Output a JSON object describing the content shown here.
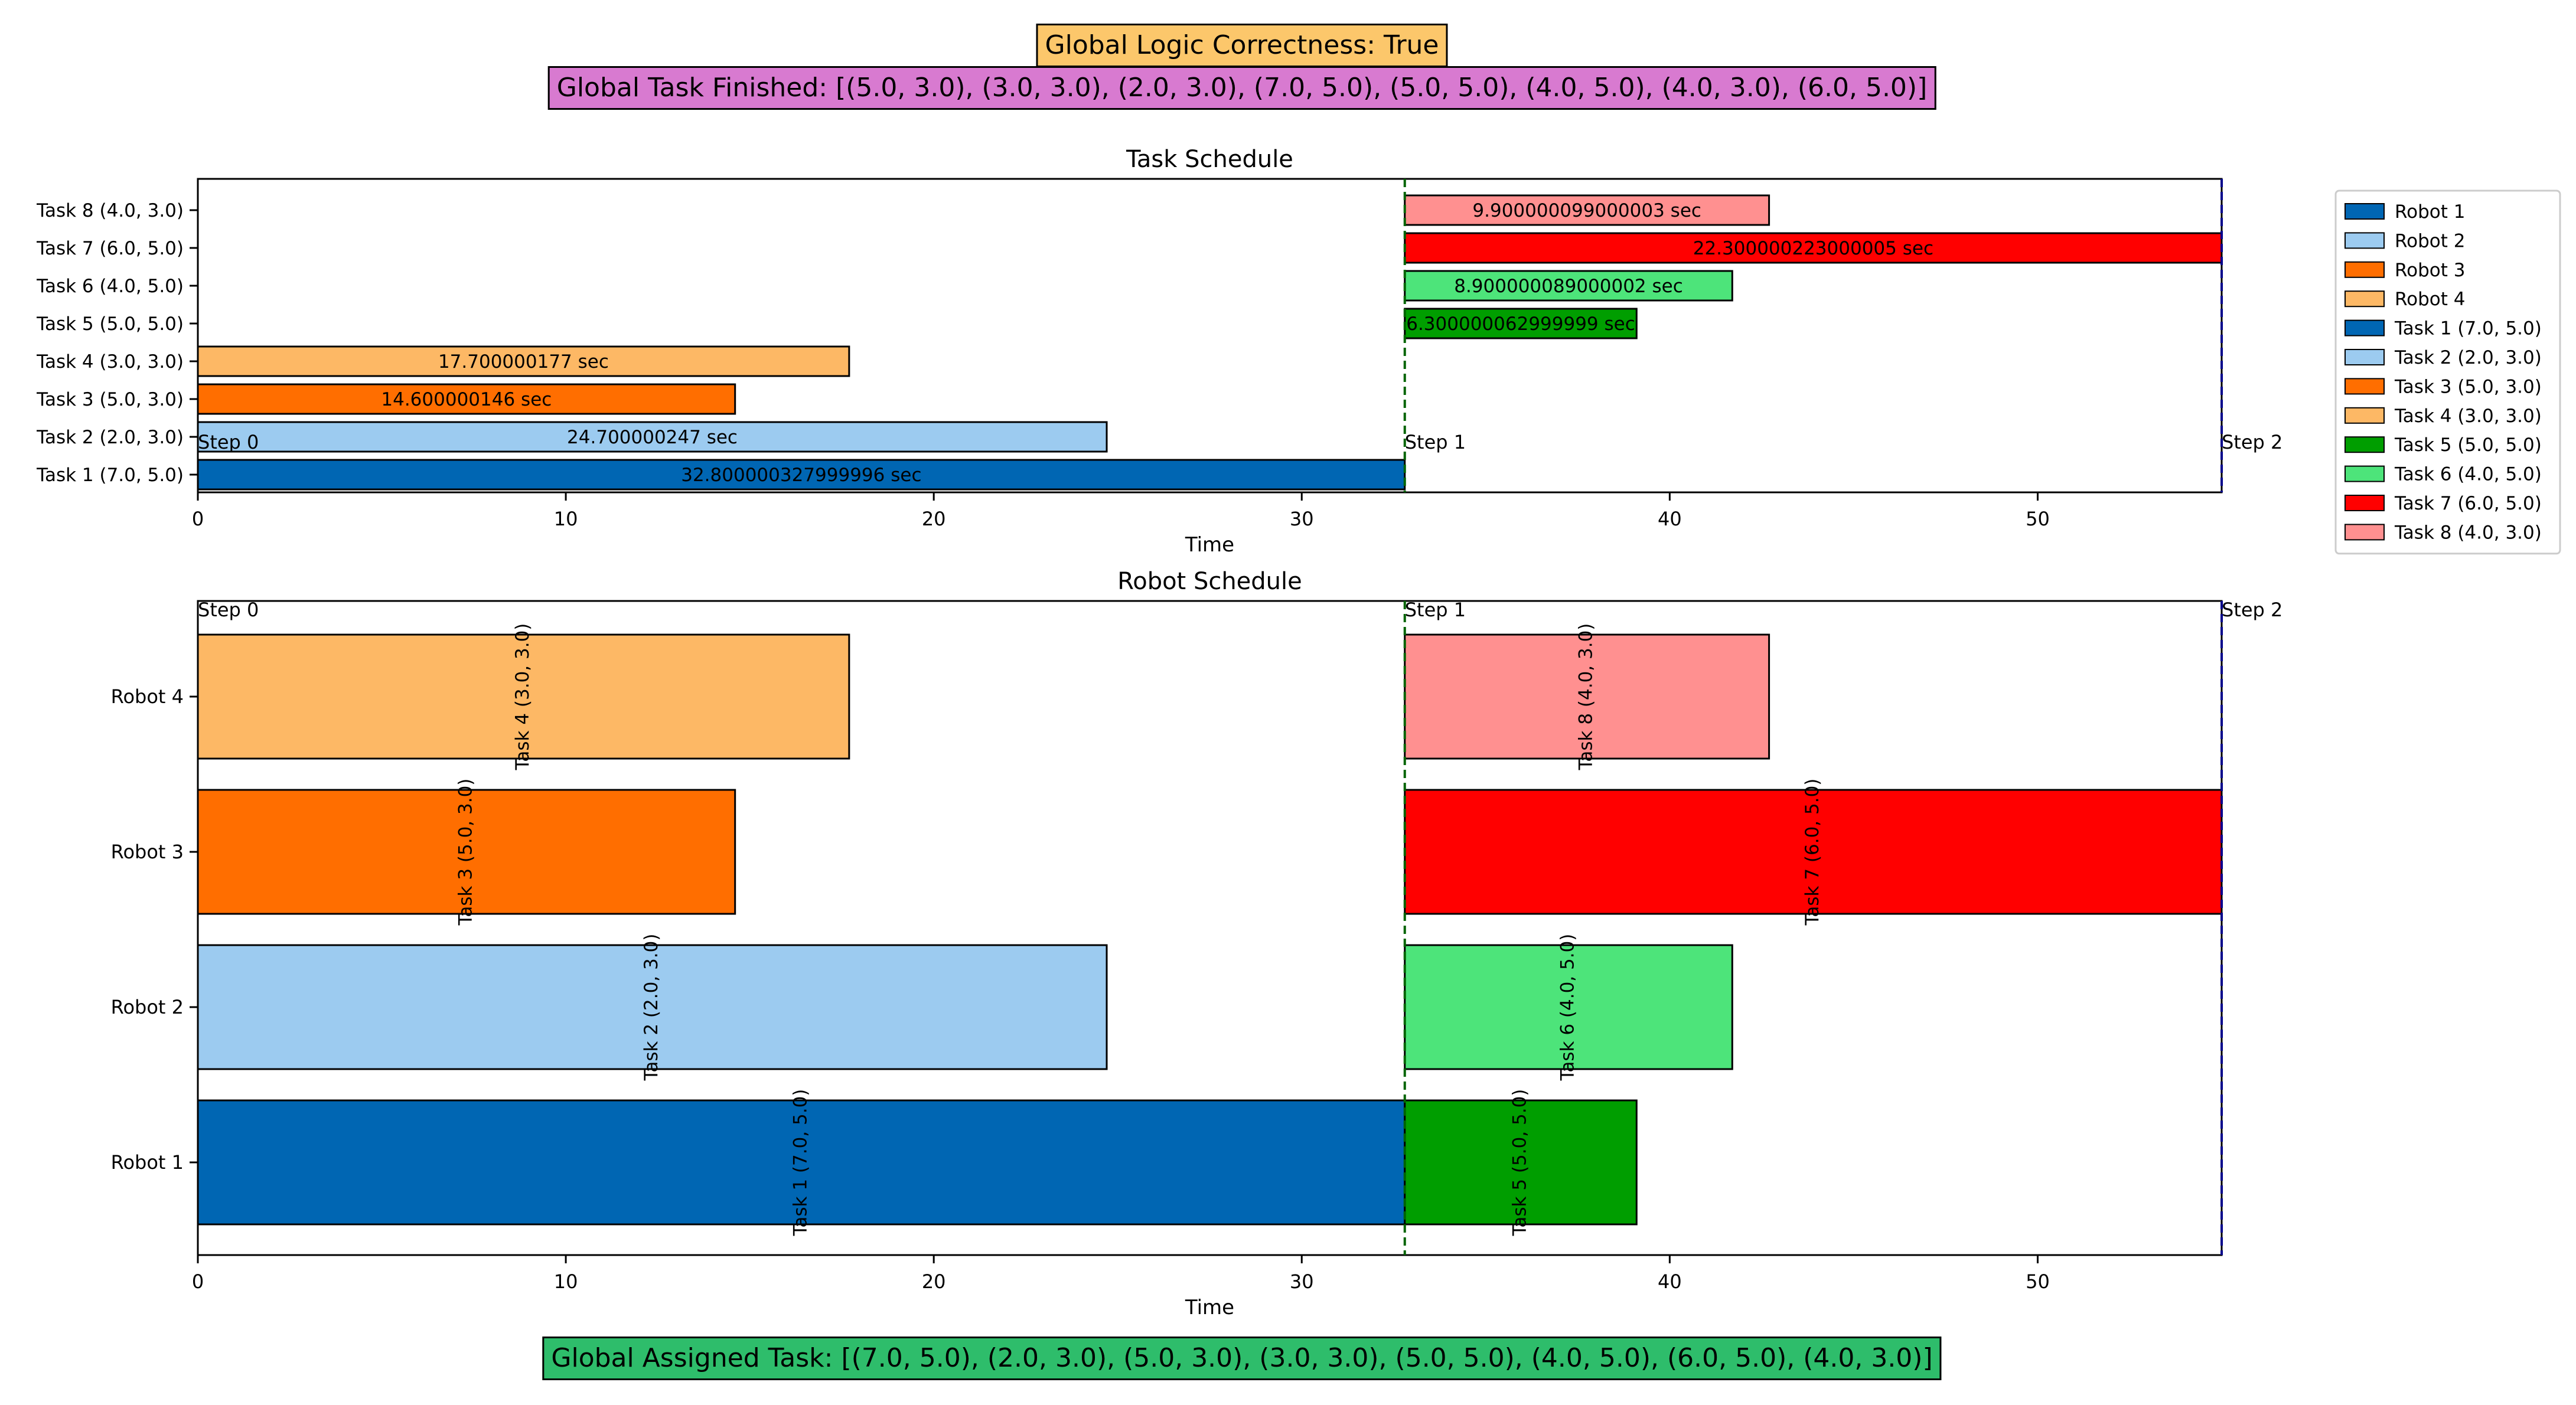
{
  "banners": {
    "correctness": "Global Logic Correctness: True",
    "finished": "Global Task Finished: [(5.0, 3.0), (3.0, 3.0), (2.0, 3.0), (7.0, 5.0), (5.0, 5.0), (4.0, 5.0), (4.0, 3.0), (6.0, 5.0)]",
    "assigned": "Global Assigned Task: [(7.0, 5.0), (2.0, 3.0), (5.0, 3.0), (3.0, 3.0), (5.0, 5.0), (4.0, 5.0), (6.0, 5.0), (4.0, 3.0)]"
  },
  "colors": {
    "robot_1": "#0066b3",
    "robot_2": "#9ccbf0",
    "robot_3": "#ff6e00",
    "robot_4": "#fdb865",
    "task_5": "#009e00",
    "task_6": "#4de47a",
    "task_7": "#ff0000",
    "task_8": "#ff9090",
    "step_line": "#006400",
    "final_line": "#00008b"
  },
  "chart_data": [
    {
      "type": "bar",
      "orientation": "horizontal",
      "title": "Task Schedule",
      "xlabel": "Time",
      "ylabel": "",
      "xlim": [
        0,
        55
      ],
      "xticks": [
        0,
        10,
        20,
        30,
        40,
        50
      ],
      "categories": [
        "Task 1 (7.0, 5.0)",
        "Task 2 (2.0, 3.0)",
        "Task 3 (5.0, 3.0)",
        "Task 4 (3.0, 3.0)",
        "Task 5 (5.0, 5.0)",
        "Task 6 (4.0, 5.0)",
        "Task 7 (6.0, 5.0)",
        "Task 8 (4.0, 3.0)"
      ],
      "bars": [
        {
          "task": "Task 1 (7.0, 5.0)",
          "start": 0,
          "duration": 32.8,
          "label": "32.800000327999996 sec",
          "color": "robot_1"
        },
        {
          "task": "Task 2 (2.0, 3.0)",
          "start": 0,
          "duration": 24.7,
          "label": "24.700000247 sec",
          "color": "robot_2"
        },
        {
          "task": "Task 3 (5.0, 3.0)",
          "start": 0,
          "duration": 14.6,
          "label": "14.600000146 sec",
          "color": "robot_3"
        },
        {
          "task": "Task 4 (3.0, 3.0)",
          "start": 0,
          "duration": 17.7,
          "label": "17.700000177 sec",
          "color": "robot_4"
        },
        {
          "task": "Task 5 (5.0, 5.0)",
          "start": 32.8,
          "duration": 6.3,
          "label": "6.300000062999999 sec",
          "color": "task_5"
        },
        {
          "task": "Task 6 (4.0, 5.0)",
          "start": 32.8,
          "duration": 8.9,
          "label": "8.900000089000002 sec",
          "color": "task_6"
        },
        {
          "task": "Task 7 (6.0, 5.0)",
          "start": 32.8,
          "duration": 22.3,
          "label": "22.300000223000005 sec",
          "color": "task_7"
        },
        {
          "task": "Task 8 (4.0, 3.0)",
          "start": 32.8,
          "duration": 9.9,
          "label": "9.900000099000003 sec",
          "color": "task_8"
        }
      ],
      "steps": [
        {
          "label": "Step 0",
          "x": 0
        },
        {
          "label": "Step 1",
          "x": 32.8
        },
        {
          "label": "Step 2",
          "x": 55.1
        }
      ],
      "legend_placement": "outside-right",
      "legend": [
        {
          "label": "Robot 1",
          "color": "robot_1"
        },
        {
          "label": "Robot 2",
          "color": "robot_2"
        },
        {
          "label": "Robot 3",
          "color": "robot_3"
        },
        {
          "label": "Robot 4",
          "color": "robot_4"
        },
        {
          "label": "Task 1 (7.0, 5.0)",
          "color": "robot_1"
        },
        {
          "label": "Task 2 (2.0, 3.0)",
          "color": "robot_2"
        },
        {
          "label": "Task 3 (5.0, 3.0)",
          "color": "robot_3"
        },
        {
          "label": "Task 4 (3.0, 3.0)",
          "color": "robot_4"
        },
        {
          "label": "Task 5 (5.0, 5.0)",
          "color": "task_5"
        },
        {
          "label": "Task 6 (4.0, 5.0)",
          "color": "task_6"
        },
        {
          "label": "Task 7 (6.0, 5.0)",
          "color": "task_7"
        },
        {
          "label": "Task 8 (4.0, 3.0)",
          "color": "task_8"
        }
      ]
    },
    {
      "type": "bar",
      "orientation": "horizontal",
      "title": "Robot Schedule",
      "xlabel": "Time",
      "ylabel": "",
      "xlim": [
        0,
        55
      ],
      "xticks": [
        0,
        10,
        20,
        30,
        40,
        50
      ],
      "categories": [
        "Robot 1",
        "Robot 2",
        "Robot 3",
        "Robot 4"
      ],
      "bars": [
        {
          "robot": "Robot 1",
          "start": 0,
          "duration": 32.8,
          "label": "Task 1 (7.0, 5.0)",
          "color": "robot_1"
        },
        {
          "robot": "Robot 1",
          "start": 32.8,
          "duration": 6.3,
          "label": "Task 5 (5.0, 5.0)",
          "color": "task_5"
        },
        {
          "robot": "Robot 2",
          "start": 0,
          "duration": 24.7,
          "label": "Task 2 (2.0, 3.0)",
          "color": "robot_2"
        },
        {
          "robot": "Robot 2",
          "start": 32.8,
          "duration": 8.9,
          "label": "Task 6 (4.0, 5.0)",
          "color": "task_6"
        },
        {
          "robot": "Robot 3",
          "start": 0,
          "duration": 14.6,
          "label": "Task 3 (5.0, 3.0)",
          "color": "robot_3"
        },
        {
          "robot": "Robot 3",
          "start": 32.8,
          "duration": 22.3,
          "label": "Task 7 (6.0, 5.0)",
          "color": "task_7"
        },
        {
          "robot": "Robot 4",
          "start": 0,
          "duration": 17.7,
          "label": "Task 4 (3.0, 3.0)",
          "color": "robot_4"
        },
        {
          "robot": "Robot 4",
          "start": 32.8,
          "duration": 9.9,
          "label": "Task 8 (4.0, 3.0)",
          "color": "task_8"
        }
      ],
      "steps": [
        {
          "label": "Step 0",
          "x": 0
        },
        {
          "label": "Step 1",
          "x": 32.8
        },
        {
          "label": "Step 2",
          "x": 55.1
        }
      ]
    }
  ]
}
